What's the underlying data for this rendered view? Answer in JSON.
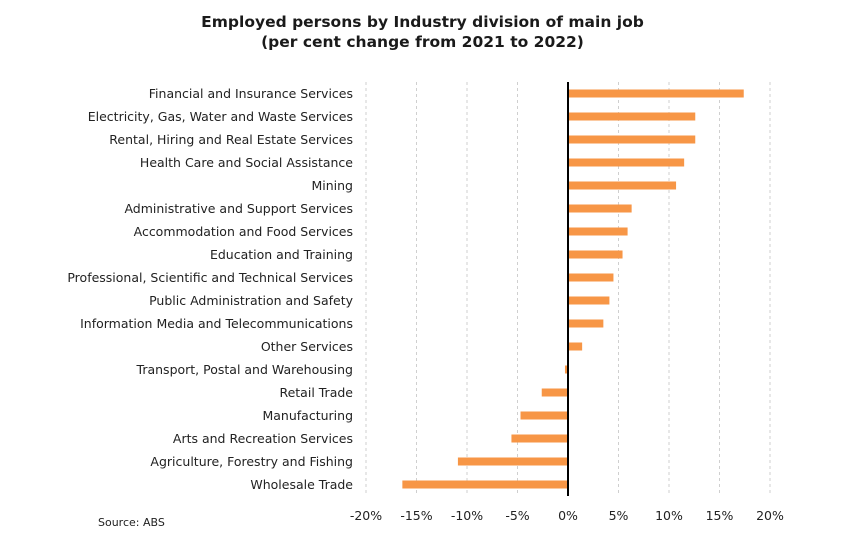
{
  "chart_data": {
    "type": "bar",
    "orientation": "horizontal",
    "title": "Employed persons by Industry division of main job",
    "subtitle": "(per cent change from 2021 to 2022)",
    "xlabel": "",
    "ylabel": "",
    "xlim": [
      -20,
      20
    ],
    "x_ticks": [
      -20,
      -15,
      -10,
      -5,
      0,
      5,
      10,
      15,
      20
    ],
    "x_tick_labels": [
      "-20%",
      "-15%",
      "-10%",
      "-5%",
      "0%",
      "5%",
      "10%",
      "15%",
      "20%"
    ],
    "grid": "vertical dashed",
    "categories": [
      "Financial and Insurance Services",
      "Electricity, Gas, Water and Waste Services",
      "Rental, Hiring and Real Estate Services",
      "Health Care and Social Assistance",
      "Mining",
      "Administrative and Support Services",
      "Accommodation and Food Services",
      "Education and Training",
      "Professional, Scientific and Technical Services",
      "Public Administration and Safety",
      "Information Media and Telecommunications",
      "Other Services",
      "Transport, Postal and Warehousing",
      "Retail Trade",
      "Manufacturing",
      "Arts and Recreation Services",
      "Agriculture, Forestry and Fishing",
      "Wholesale Trade"
    ],
    "values": [
      17.4,
      12.6,
      12.6,
      11.5,
      10.7,
      6.3,
      5.9,
      5.4,
      4.5,
      4.1,
      3.5,
      1.4,
      -0.3,
      -2.6,
      -4.7,
      -5.6,
      -10.9,
      -16.4
    ],
    "bar_color": "#F79646",
    "source": "Source: ABS"
  }
}
